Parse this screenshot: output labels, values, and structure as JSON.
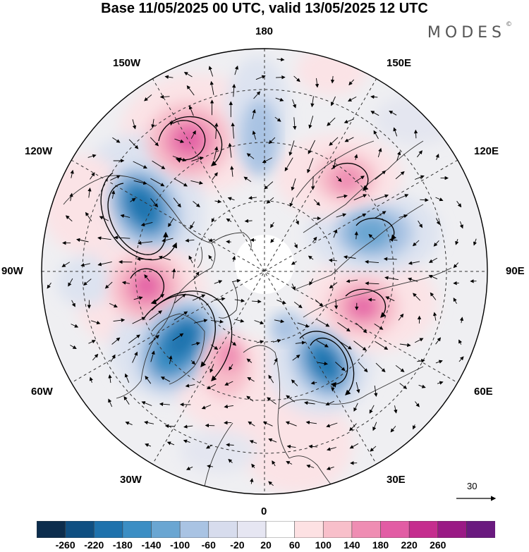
{
  "title": "Base 11/05/2025 00 UTC, valid 13/05/2025 12 UTC",
  "brand": "MODES",
  "brand_mark": "©",
  "longitude_labels": {
    "top": "180",
    "bottom": "0",
    "left": "90W",
    "right": "90E",
    "upper_left_1": "150W",
    "upper_left_2": "120W",
    "upper_right_1": "150E",
    "upper_right_2": "120E",
    "lower_left_1": "60W",
    "lower_left_2": "30W",
    "lower_right_1": "60E",
    "lower_right_2": "30E"
  },
  "vector_scale": {
    "label": "30",
    "units": "reference arrow"
  },
  "colorbar": {
    "ticks": [
      "-260",
      "-220",
      "-180",
      "-140",
      "-100",
      "-60",
      "-20",
      "20",
      "60",
      "100",
      "140",
      "180",
      "220",
      "260"
    ],
    "colors": [
      "#0c2d4d",
      "#0f4f82",
      "#1e72ad",
      "#3b8ec4",
      "#6aa6d2",
      "#a9c3e3",
      "#d7dced",
      "#e6e6f2",
      "#ffffff",
      "#fde1e3",
      "#f8bfca",
      "#ef8db3",
      "#e25ca4",
      "#c52d8e",
      "#9a1a85",
      "#6a1a7f"
    ]
  },
  "map_data": {
    "projection": "north polar stereographic",
    "field": "shaded anomaly with wind vectors",
    "anomalies": [
      {
        "name": "north-pacific-high",
        "lon": "160W",
        "sign": "positive",
        "strength": 180
      },
      {
        "name": "alaska-low",
        "lon": "130W",
        "sign": "negative",
        "strength": -220
      },
      {
        "name": "canada-high",
        "lon": "95W",
        "sign": "positive",
        "strength": 180
      },
      {
        "name": "labrador-low",
        "lon": "60W",
        "sign": "negative",
        "strength": -220
      },
      {
        "name": "europe-low",
        "lon": "20E",
        "sign": "negative",
        "strength": -220
      },
      {
        "name": "siberia-high",
        "lon": "80E",
        "sign": "positive",
        "strength": 180
      },
      {
        "name": "east-siberia-low",
        "lon": "120E",
        "sign": "negative",
        "strength": -140
      },
      {
        "name": "yakutia-high",
        "lon": "140E",
        "sign": "positive",
        "strength": 100
      }
    ]
  }
}
